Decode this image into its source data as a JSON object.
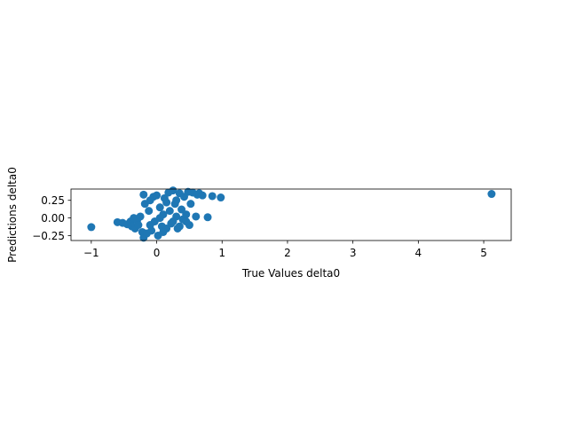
{
  "chart_data": {
    "type": "scatter",
    "title": "",
    "xlabel": "True Values delta0",
    "ylabel": "Predictions delta0",
    "xlim": [
      -1.31,
      5.42
    ],
    "ylim": [
      -0.32,
      0.41
    ],
    "xticks": [
      -1,
      0,
      1,
      2,
      3,
      4,
      5
    ],
    "xtick_labels": [
      "−1",
      "0",
      "1",
      "2",
      "3",
      "4",
      "5"
    ],
    "yticks": [
      -0.25,
      0.0,
      0.25
    ],
    "ytick_labels": [
      "−0.25",
      "0.00",
      "0.25"
    ],
    "grid": false,
    "legend": "none",
    "color": "#1f77b4",
    "series": [
      {
        "points": [
          [
            -1.0,
            -0.13
          ],
          [
            5.12,
            0.34
          ],
          [
            0.98,
            0.29
          ],
          [
            0.85,
            0.31
          ],
          [
            0.78,
            0.01
          ],
          [
            -0.6,
            -0.06
          ],
          [
            -0.52,
            -0.07
          ],
          [
            -0.45,
            -0.09
          ],
          [
            -0.4,
            -0.05
          ],
          [
            -0.38,
            -0.12
          ],
          [
            -0.35,
            0.0
          ],
          [
            -0.33,
            -0.15
          ],
          [
            -0.3,
            -0.04
          ],
          [
            -0.28,
            -0.1
          ],
          [
            -0.25,
            0.02
          ],
          [
            -0.22,
            -0.2
          ],
          [
            -0.2,
            -0.28
          ],
          [
            -0.2,
            0.33
          ],
          [
            -0.18,
            0.2
          ],
          [
            -0.15,
            -0.22
          ],
          [
            -0.12,
            0.1
          ],
          [
            -0.1,
            0.25
          ],
          [
            -0.08,
            -0.18
          ],
          [
            -0.05,
            0.3
          ],
          [
            -0.03,
            -0.05
          ],
          [
            0.0,
            0.32
          ],
          [
            0.02,
            -0.25
          ],
          [
            0.05,
            0.15
          ],
          [
            0.08,
            -0.12
          ],
          [
            0.1,
            0.05
          ],
          [
            0.12,
            0.28
          ],
          [
            0.15,
            -0.15
          ],
          [
            0.18,
            0.36
          ],
          [
            0.2,
            0.1
          ],
          [
            0.22,
            -0.08
          ],
          [
            0.25,
            0.39
          ],
          [
            0.28,
            0.2
          ],
          [
            0.3,
            0.02
          ],
          [
            0.32,
            -0.15
          ],
          [
            0.35,
            0.35
          ],
          [
            0.38,
            0.12
          ],
          [
            0.4,
            -0.02
          ],
          [
            0.42,
            0.3
          ],
          [
            0.45,
            0.05
          ],
          [
            0.48,
            0.37
          ],
          [
            0.5,
            -0.1
          ],
          [
            0.55,
            0.36
          ],
          [
            0.6,
            0.02
          ],
          [
            0.62,
            0.33
          ],
          [
            0.65,
            0.35
          ],
          [
            0.7,
            0.32
          ],
          [
            0.52,
            0.2
          ],
          [
            0.3,
            0.25
          ],
          [
            0.1,
            -0.2
          ],
          [
            -0.1,
            -0.1
          ],
          [
            0.05,
            0.0
          ],
          [
            0.15,
            0.22
          ],
          [
            0.25,
            -0.05
          ],
          [
            0.35,
            -0.12
          ],
          [
            0.45,
            -0.05
          ]
        ]
      }
    ]
  }
}
